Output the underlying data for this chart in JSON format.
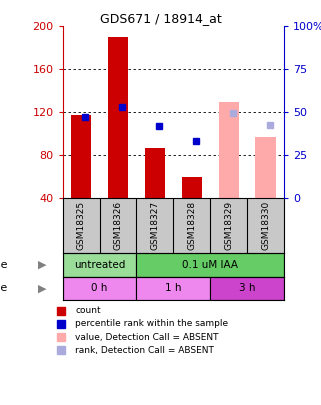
{
  "title": "GDS671 / 18914_at",
  "samples": [
    "GSM18325",
    "GSM18326",
    "GSM18327",
    "GSM18328",
    "GSM18329",
    "GSM18330"
  ],
  "count_values": [
    118,
    190,
    87,
    60,
    null,
    null
  ],
  "rank_values": [
    116,
    125,
    107,
    93,
    null,
    null
  ],
  "absent_count_values": [
    null,
    null,
    null,
    null,
    130,
    97
  ],
  "absent_rank_values": [
    null,
    null,
    null,
    null,
    119,
    108
  ],
  "ylim_left": [
    40,
    200
  ],
  "ylim_right": [
    0,
    100
  ],
  "yticks_left": [
    40,
    80,
    120,
    160,
    200
  ],
  "yticks_right": [
    0,
    25,
    50,
    75,
    100
  ],
  "yticklabels_right": [
    "0",
    "25",
    "50",
    "75",
    "100%"
  ],
  "left_axis_color": "#cc0000",
  "right_axis_color": "#0000cc",
  "bar_width": 0.55,
  "background_color": "#ffffff",
  "plot_bg_color": "#ffffff",
  "sample_bg_color": "#c8c8c8",
  "dose_untreated_color": "#99dd99",
  "dose_treated_color": "#66cc66",
  "time_light_color": "#ee88ee",
  "time_dark_color": "#cc44cc",
  "legend_items": [
    {
      "color": "#cc0000",
      "label": "count"
    },
    {
      "color": "#0000cc",
      "label": "percentile rank within the sample"
    },
    {
      "color": "#ffaaaa",
      "label": "value, Detection Call = ABSENT"
    },
    {
      "color": "#aaaadd",
      "label": "rank, Detection Call = ABSENT"
    }
  ]
}
